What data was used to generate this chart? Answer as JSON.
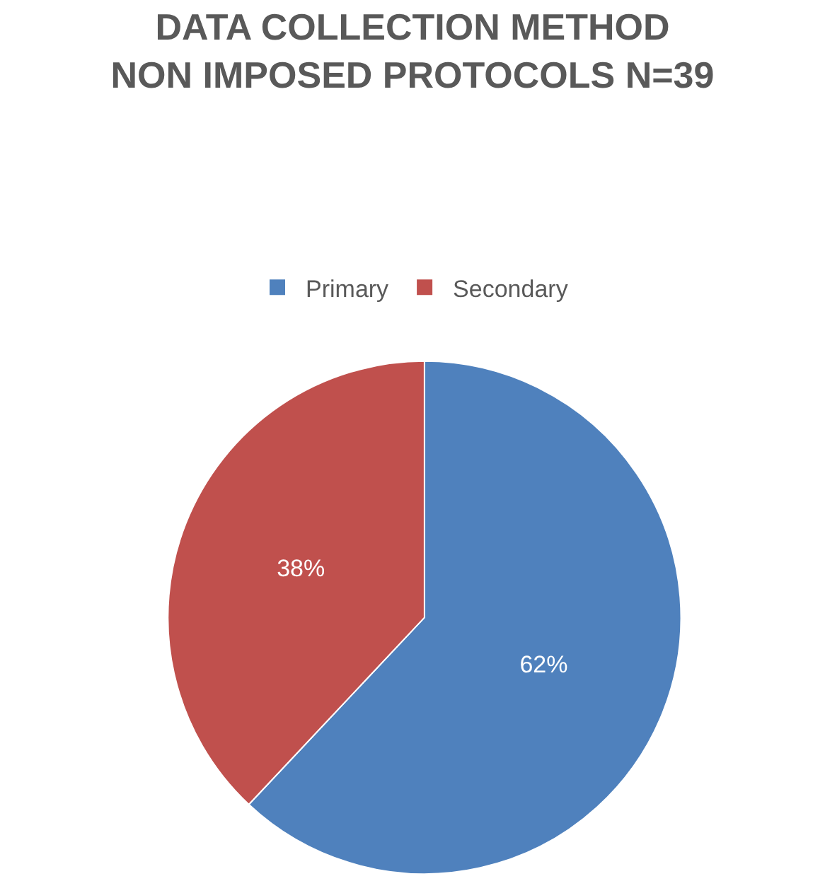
{
  "chart_data": {
    "type": "pie",
    "title": "DATA COLLECTION METHOD\nNON IMPOSED PROTOCOLS N=39",
    "categories": [
      "Primary",
      "Secondary"
    ],
    "values": [
      62,
      38
    ],
    "value_labels": [
      "62%",
      "38%"
    ],
    "colors": [
      "#4f81bd",
      "#c0504d"
    ],
    "legend": "top"
  }
}
